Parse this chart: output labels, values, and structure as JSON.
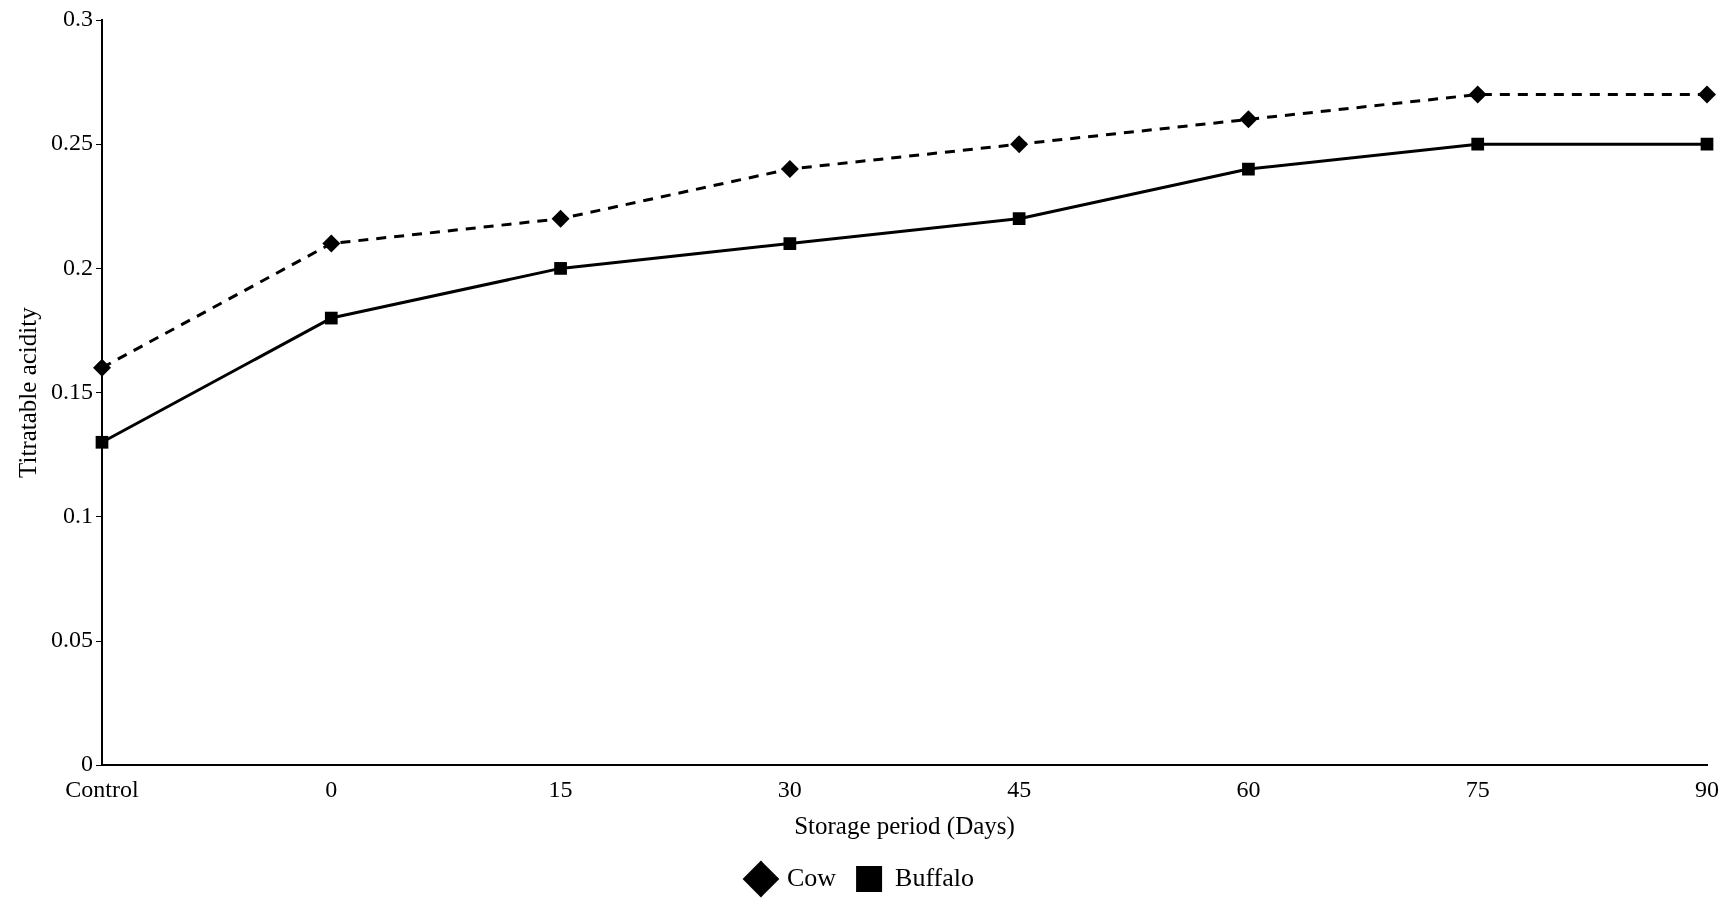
{
  "chart_data": {
    "type": "line",
    "xlabel": "Storage period (Days)",
    "ylabel": "Titratable acidity",
    "categories": [
      "Control",
      "0",
      "15",
      "30",
      "45",
      "60",
      "75",
      "90"
    ],
    "series": [
      {
        "name": "Cow",
        "color": "#000000",
        "marker": "diamond",
        "line_style": "dashed",
        "values": [
          0.16,
          0.21,
          0.22,
          0.24,
          0.25,
          0.26,
          0.27,
          0.27
        ]
      },
      {
        "name": "Buffalo",
        "color": "#000000",
        "marker": "square",
        "line_style": "solid",
        "values": [
          0.13,
          0.18,
          0.2,
          0.21,
          0.22,
          0.24,
          0.25,
          0.25
        ]
      }
    ],
    "ylim": [
      0,
      0.3
    ],
    "yticks": [
      0,
      0.05,
      0.1,
      0.15,
      0.2,
      0.25,
      0.3
    ],
    "legend": "bottom"
  }
}
